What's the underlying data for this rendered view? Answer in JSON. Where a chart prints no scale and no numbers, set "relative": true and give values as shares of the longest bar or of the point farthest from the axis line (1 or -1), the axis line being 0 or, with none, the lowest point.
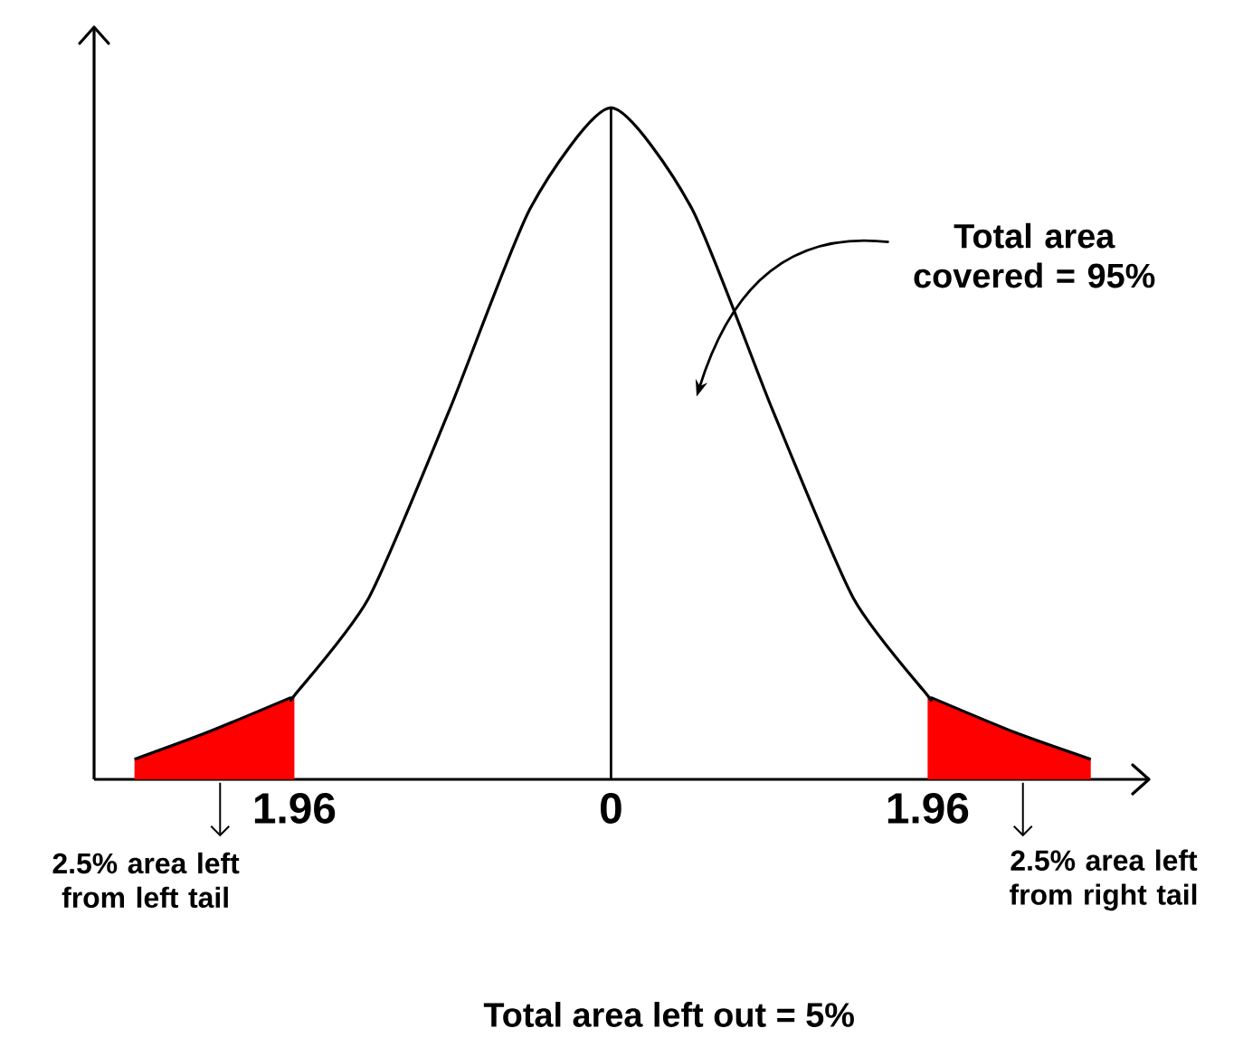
{
  "chart_data": {
    "type": "line",
    "relative": true,
    "xlim": [
      -3.2,
      3.33
    ],
    "xticks": [
      {
        "value": -1.96,
        "label": "1.96"
      },
      0,
      1.96
    ],
    "series": [
      {
        "type": "line",
        "color": "#000000",
        "x": [
          -2.95,
          -2.5,
          -2,
          -1.96,
          -1.5,
          -1,
          -0.5,
          0,
          0.5,
          1,
          1.5,
          1.96,
          2,
          2.5,
          2.97
        ],
        "values": [
          0.03,
          0.07,
          0.12,
          0.125,
          0.27,
          0.55,
          0.85,
          1,
          0.85,
          0.55,
          0.27,
          0.125,
          0.12,
          0.07,
          0.03
        ]
      },
      {
        "type": "area",
        "color": "#ff0000",
        "x": [
          -2.95,
          -2.5,
          -2,
          -1.96
        ],
        "values": [
          0.03,
          0.07,
          0.12,
          0.125
        ]
      },
      {
        "type": "area",
        "color": "#ff0000",
        "x": [
          1.96,
          2,
          2.5,
          2.97
        ],
        "values": [
          0.125,
          0.12,
          0.07,
          0.03
        ]
      }
    ],
    "ref_lines": [
      {
        "axis": "x",
        "value": 0,
        "color": "#000000"
      }
    ],
    "annotations": [
      "Total area covered = 95%",
      "2.5% area left from left tail",
      "2.5% area left from right tail",
      "Total area left out = 5%"
    ]
  }
}
